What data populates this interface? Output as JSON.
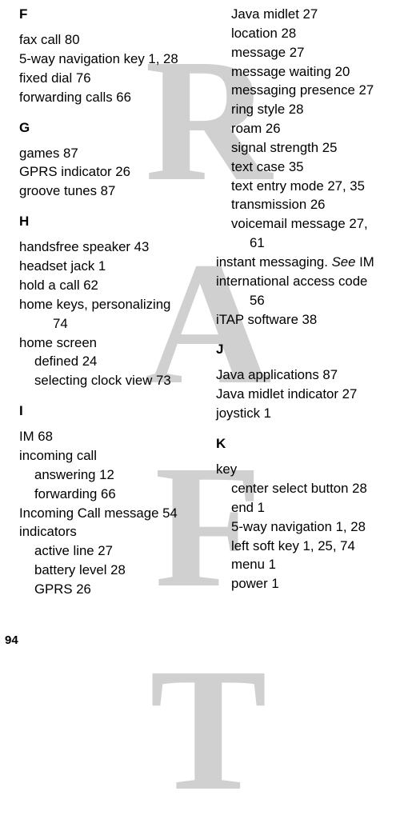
{
  "watermark": "DRAFT",
  "pageNumber": "94",
  "left": {
    "sections": [
      {
        "letter": "F",
        "first": true,
        "entries": [
          {
            "text": "fax call  80"
          },
          {
            "text": "5-way navigation key  1, 28"
          },
          {
            "text": "fixed dial  76"
          },
          {
            "text": "forwarding calls  66"
          }
        ]
      },
      {
        "letter": "G",
        "entries": [
          {
            "text": "games  87"
          },
          {
            "text": "GPRS indicator  26"
          },
          {
            "text": "groove tunes  87"
          }
        ]
      },
      {
        "letter": "H",
        "entries": [
          {
            "text": "handsfree speaker  43"
          },
          {
            "text": "headset jack  1"
          },
          {
            "text": "hold a call  62"
          },
          {
            "text": "home keys, personalizing  "
          },
          {
            "text": "74",
            "cont": true
          },
          {
            "text": "home screen"
          },
          {
            "text": "defined  24",
            "sub": true
          },
          {
            "text": "selecting clock view  73",
            "sub": true
          }
        ]
      },
      {
        "letter": "I",
        "entries": [
          {
            "text": "IM  68"
          },
          {
            "text": "incoming call"
          },
          {
            "text": "answering  12",
            "sub": true
          },
          {
            "text": "forwarding  66",
            "sub": true
          },
          {
            "text": "Incoming Call message  54"
          },
          {
            "text": "indicators"
          },
          {
            "text": "active line  27",
            "sub": true
          },
          {
            "text": "battery level  28",
            "sub": true
          },
          {
            "text": "GPRS  26",
            "sub": true
          }
        ]
      }
    ]
  },
  "right": {
    "preEntries": [
      {
        "text": "Java midlet  27",
        "sub": true
      },
      {
        "text": "location  28",
        "sub": true
      },
      {
        "text": "message  27",
        "sub": true
      },
      {
        "text": "message waiting  20",
        "sub": true
      },
      {
        "text": "messaging presence  27",
        "sub": true
      },
      {
        "text": "ring style  28",
        "sub": true
      },
      {
        "text": "roam  26",
        "sub": true
      },
      {
        "text": "signal strength  25",
        "sub": true
      },
      {
        "text": "text case  35",
        "sub": true
      },
      {
        "text": "text entry mode  27, 35",
        "sub": true
      },
      {
        "text": "transmission  26",
        "sub": true
      },
      {
        "text": "voicemail message  27, ",
        "sub": true
      },
      {
        "text": "61",
        "cont": true
      },
      {
        "html": "instant messaging. <span class=\"italic\">See</span> IM"
      },
      {
        "text": "international access code  "
      },
      {
        "text": "56",
        "cont": true
      },
      {
        "text": "iTAP software  38"
      }
    ],
    "sections": [
      {
        "letter": "J",
        "entries": [
          {
            "text": "Java applications  87"
          },
          {
            "text": "Java midlet indicator  27"
          },
          {
            "text": "joystick  1"
          }
        ]
      },
      {
        "letter": "K",
        "entries": [
          {
            "text": "key"
          },
          {
            "text": "center select button  28",
            "sub": true
          },
          {
            "text": "end  1",
            "sub": true
          },
          {
            "text": "5-way navigation  1, 28",
            "sub": true
          },
          {
            "text": "left soft key  1, 25, 74",
            "sub": true
          },
          {
            "text": "menu  1",
            "sub": true
          },
          {
            "text": "power  1",
            "sub": true
          }
        ]
      }
    ]
  }
}
